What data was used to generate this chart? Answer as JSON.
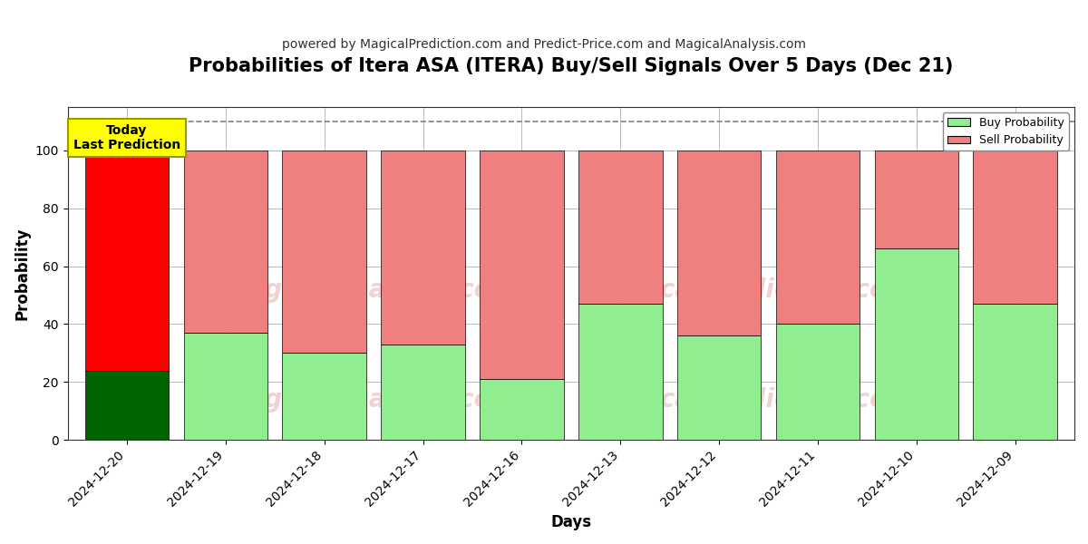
{
  "title": "Probabilities of Itera ASA (ITERA) Buy/Sell Signals Over 5 Days (Dec 21)",
  "subtitle": "powered by MagicalPrediction.com and Predict-Price.com and MagicalAnalysis.com",
  "xlabel": "Days",
  "ylabel": "Probability",
  "categories": [
    "2024-12-20",
    "2024-12-19",
    "2024-12-18",
    "2024-12-17",
    "2024-12-16",
    "2024-12-13",
    "2024-12-12",
    "2024-12-11",
    "2024-12-10",
    "2024-12-09"
  ],
  "buy_values": [
    24,
    37,
    30,
    33,
    21,
    47,
    36,
    40,
    66,
    47
  ],
  "sell_values": [
    76,
    63,
    70,
    67,
    79,
    53,
    64,
    60,
    34,
    53
  ],
  "buy_colors": [
    "#006400",
    "#90EE90",
    "#90EE90",
    "#90EE90",
    "#90EE90",
    "#90EE90",
    "#90EE90",
    "#90EE90",
    "#90EE90",
    "#90EE90"
  ],
  "sell_colors": [
    "#FF0000",
    "#F08080",
    "#F08080",
    "#F08080",
    "#F08080",
    "#F08080",
    "#F08080",
    "#F08080",
    "#F08080",
    "#F08080"
  ],
  "legend_buy_color": "#90EE90",
  "legend_sell_color": "#F08080",
  "today_box_color": "#FFFF00",
  "today_text": "Today\nLast Prediction",
  "dashed_line_y": 110,
  "ylim": [
    0,
    115
  ],
  "yticks": [
    0,
    20,
    40,
    60,
    80,
    100
  ],
  "grid_color": "#bbbbbb",
  "bar_edge_color": "#000000",
  "bar_linewidth": 0.5,
  "bar_width": 0.85,
  "figsize": [
    12,
    6
  ],
  "dpi": 100,
  "title_fontsize": 15,
  "subtitle_fontsize": 10,
  "axis_label_fontsize": 12,
  "tick_fontsize": 10,
  "watermark_color": "#e8b4b4",
  "watermark_fontsize": 20,
  "watermark_alpha": 0.6
}
